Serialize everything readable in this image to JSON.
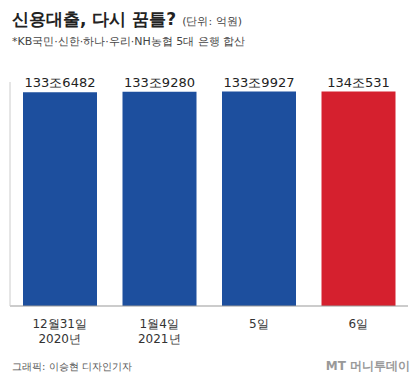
{
  "chart_data": {
    "type": "bar",
    "title": "신용대출, 다시 꿈틀?",
    "subtitle": "(단위: 억원)",
    "note": "*KB국민·신한·하나·우리·NH농협 5대 은행 합산",
    "categories": [
      "12월31일\n2020년",
      "1월4일\n2021년",
      "5일",
      "6일"
    ],
    "values": [
      1336482,
      1339280,
      1339927,
      1340531
    ],
    "value_labels": [
      "133조6482",
      "133조9280",
      "133조9927",
      "134조531"
    ],
    "colors": [
      "#1d4f9e",
      "#1d4f9e",
      "#1d4f9e",
      "#d5202e"
    ],
    "ylim": [
      0,
      1400000
    ],
    "tick_labels": false,
    "data_labels": true,
    "grid": false,
    "source": "그래픽: 이승현 디자인기자",
    "watermark": "MT 머니투데이"
  }
}
